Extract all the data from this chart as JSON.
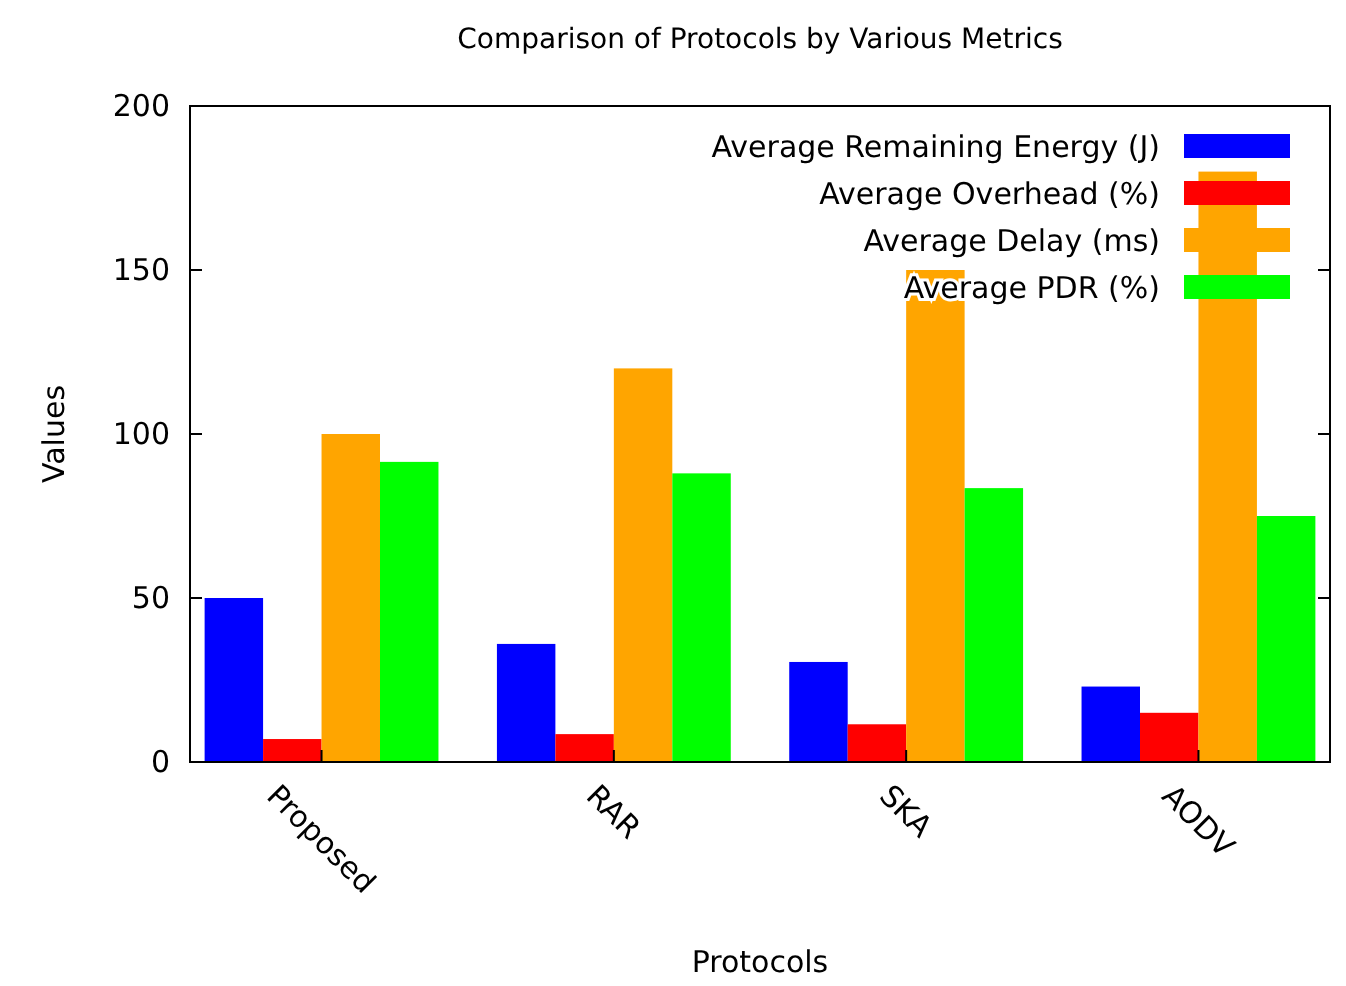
{
  "chart_data": {
    "type": "bar",
    "title": "Comparison of Protocols by Various Metrics",
    "xlabel": "Protocols",
    "ylabel": "Values",
    "categories": [
      "Proposed",
      "RAR",
      "SKA",
      "AODV"
    ],
    "series": [
      {
        "name": "Average Remaining Energy (J)",
        "color": "#0000ff",
        "values": [
          50,
          36,
          30.5,
          23
        ]
      },
      {
        "name": "Average Overhead (%)",
        "color": "#ff0000",
        "values": [
          7,
          8.5,
          11.5,
          15
        ]
      },
      {
        "name": "Average Delay (ms)",
        "color": "#ffa500",
        "values": [
          100,
          120,
          150,
          180
        ]
      },
      {
        "name": "Average PDR (%)",
        "color": "#00ff00",
        "values": [
          91.5,
          88,
          83.5,
          75
        ]
      }
    ],
    "ylim": [
      0,
      200
    ],
    "yticks": [
      0,
      50,
      100,
      150,
      200
    ],
    "grid": false,
    "legend": "top right"
  }
}
